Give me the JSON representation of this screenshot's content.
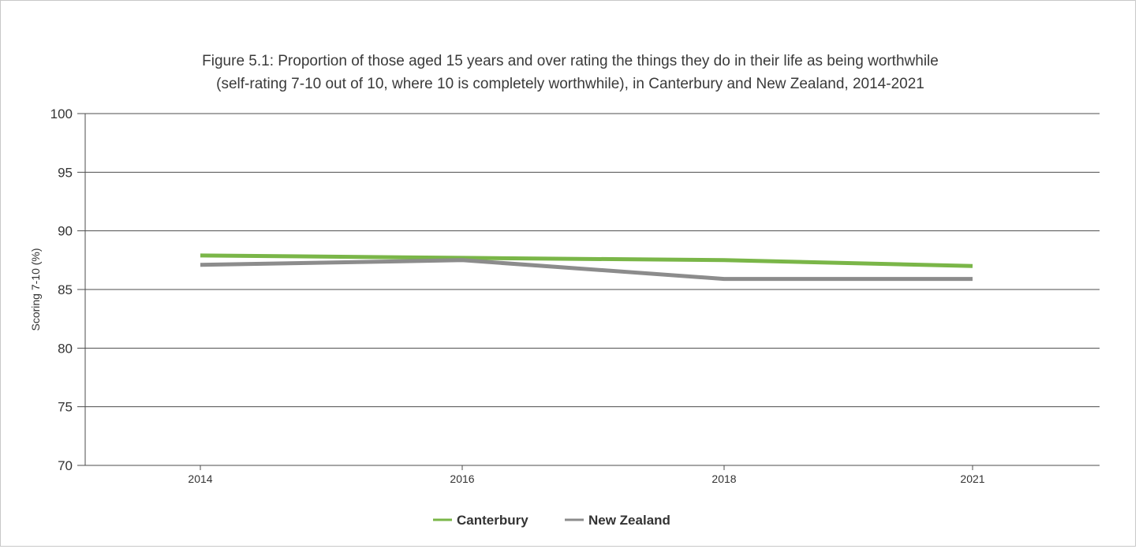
{
  "chart_data": {
    "type": "line",
    "title_lines": [
      "Figure 5.1: Proportion of those aged 15 years and over rating the things they do in their life as being worthwhile",
      "(self-rating 7-10 out of 10, where 10 is completely worthwhile), in Canterbury and New Zealand, 2014-2021"
    ],
    "ylabel": "Scoring 7-10 (%)",
    "xlabel": "",
    "categories": [
      "2014",
      "2016",
      "2018",
      "2021"
    ],
    "ylim": [
      70,
      100
    ],
    "yticks": [
      70,
      75,
      80,
      85,
      90,
      95,
      100
    ],
    "grid": true,
    "legend_position": "bottom",
    "series": [
      {
        "name": "Canterbury",
        "color": "#7ab648",
        "values": [
          87.9,
          87.7,
          87.5,
          87.0
        ]
      },
      {
        "name": "New Zealand",
        "color": "#8c8c8c",
        "values": [
          87.1,
          87.5,
          85.9,
          85.9
        ]
      }
    ]
  }
}
